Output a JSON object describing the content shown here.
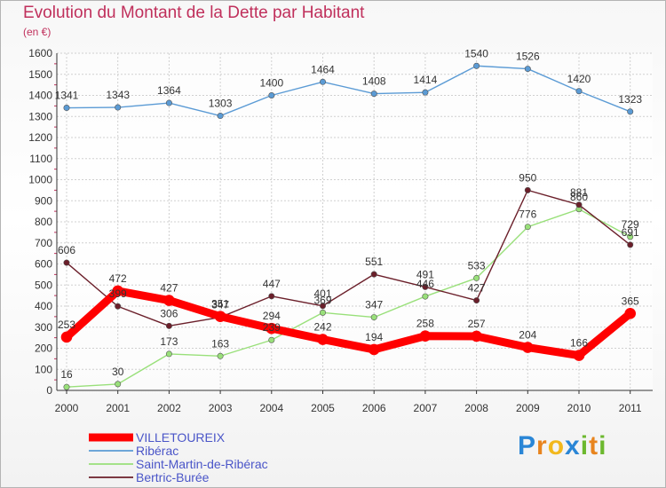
{
  "title": "Evolution du Montant de la Dette par Habitant",
  "subtitle": "(en €)",
  "logo": {
    "letters": [
      "P",
      "r",
      "o",
      "x",
      "i",
      "t",
      "i"
    ],
    "colors": [
      "#2a86d6",
      "#e8841e",
      "#f2b81d",
      "#2a86d6",
      "#6cb82e",
      "#e8841e",
      "#6cb82e"
    ]
  },
  "chart_data": {
    "type": "line",
    "x": [
      "2000",
      "2001",
      "2002",
      "2003",
      "2004",
      "2005",
      "2006",
      "2007",
      "2008",
      "2009",
      "2010",
      "2011"
    ],
    "ylim": [
      0,
      1600
    ],
    "yticks": [
      "0",
      "100",
      "200",
      "300",
      "400",
      "500",
      "600",
      "700",
      "800",
      "900",
      "1000",
      "1100",
      "1200",
      "1300",
      "1400",
      "1500",
      "1600"
    ],
    "grid": true,
    "legend_position": "bottom",
    "series": [
      {
        "name": "Ribérac",
        "color": "#5b9bd5",
        "values": [
          1341,
          1343,
          1364,
          1303,
          1400,
          1464,
          1408,
          1414,
          1540,
          1526,
          1420,
          1323
        ]
      },
      {
        "name": "Saint-Martin-de-Ribérac",
        "color": "#99e07a",
        "values": [
          16,
          30,
          173,
          163,
          239,
          369,
          347,
          446,
          533,
          776,
          860,
          729
        ]
      },
      {
        "name": "Bertric-Burée",
        "color": "#6b1f2a",
        "values": [
          606,
          399,
          306,
          347,
          447,
          401,
          551,
          491,
          427,
          950,
          881,
          691
        ]
      },
      {
        "name": "VILLETOUREIX",
        "color": "#ff0000",
        "values": [
          253,
          472,
          427,
          351,
          294,
          242,
          194,
          258,
          257,
          204,
          166,
          365
        ]
      }
    ],
    "data_labels": [
      [
        "1341",
        "1343",
        "1364",
        "1303",
        "1400",
        "1464",
        "1408",
        "1414",
        "1540",
        "1526",
        "1420",
        "1323"
      ],
      [
        "16",
        "30",
        "173",
        "163",
        "239",
        "369",
        "347",
        "446",
        "533",
        "776",
        "860",
        "729"
      ],
      [
        "606",
        "399",
        "306",
        "347",
        "447",
        "401",
        "551",
        "491",
        "427",
        "950",
        "881",
        "691"
      ],
      [
        "253",
        "472",
        "427",
        "351",
        "294",
        "242",
        "194",
        "258",
        "257",
        "204",
        "166",
        "365"
      ]
    ],
    "legend": [
      "VILLETOUREIX",
      "Ribérac",
      "Saint-Martin-de-Ribérac",
      "Bertric-Burée"
    ]
  }
}
